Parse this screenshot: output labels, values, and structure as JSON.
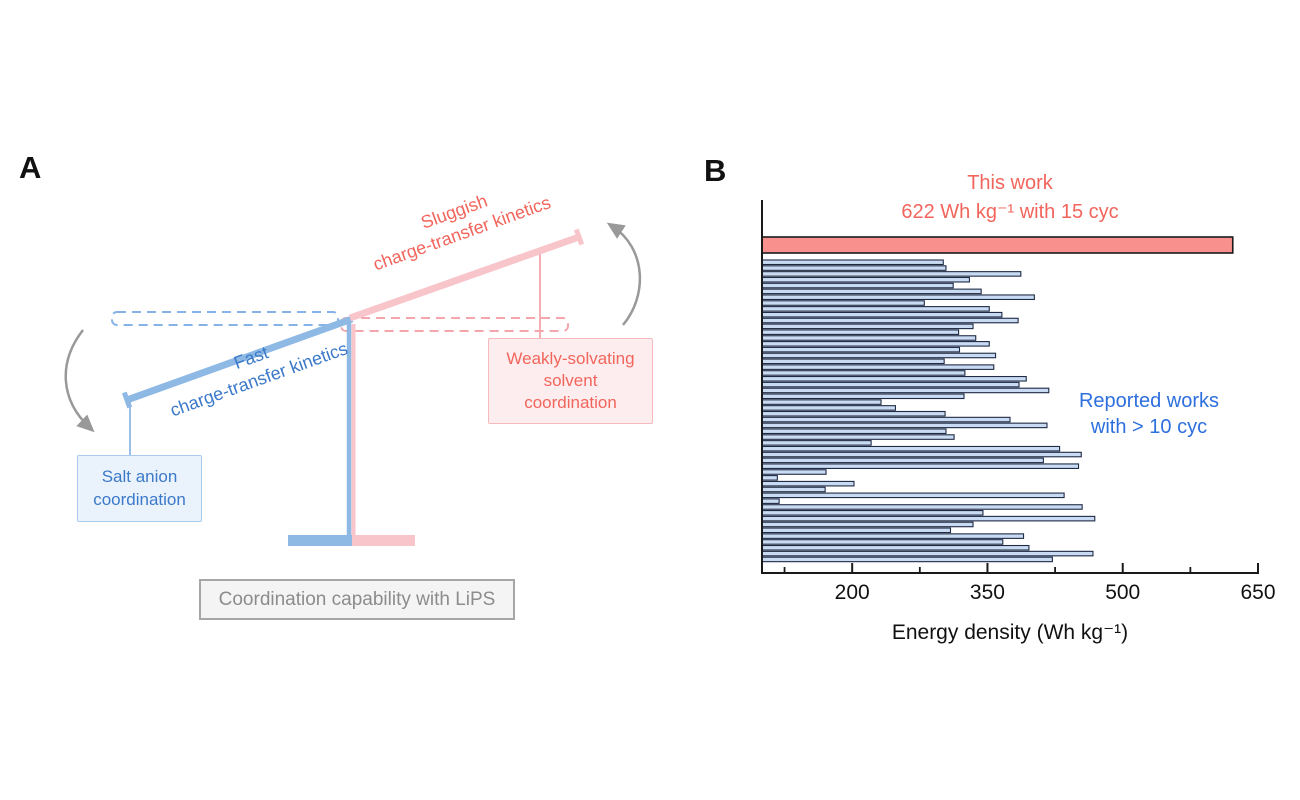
{
  "figure": {
    "panel_a": {
      "label": "A",
      "beam_labels": {
        "fast": [
          "Fast",
          "charge-transfer kinetics"
        ],
        "sluggish": [
          "Sluggish",
          "charge-transfer kinetics"
        ]
      },
      "left_box_lines": [
        "Salt anion",
        "coordination"
      ],
      "right_box_lines": [
        "Weakly-solvating",
        "solvent",
        "coordination"
      ],
      "caption": "Coordination capability with LiPS",
      "colors": {
        "blue": "#8FB9E5",
        "blue_text": "#3B79C9",
        "blue_box_fill": "#EAF3FC",
        "blue_box_border": "#A9CAEC",
        "pink": "#F8C5CB",
        "red_text": "#F2655C",
        "pink_box_fill": "#FDEDEE",
        "pink_box_border": "#F6B9BE",
        "gray_arrow": "#999999"
      }
    },
    "panel_b": {
      "label": "B",
      "title_lines": [
        "This work",
        "622 Wh kg⁻¹ with 15 cyc"
      ],
      "annotation_lines": [
        "Reported works",
        "with > 10 cyc"
      ],
      "xlabel": "Energy density (Wh kg⁻¹)"
    }
  },
  "chart_data": {
    "type": "bar",
    "orientation": "horizontal",
    "title": "This work — 622 Wh kg⁻¹ with 15 cyc",
    "xlabel": "Energy density (Wh kg⁻¹)",
    "xlim": [
      100,
      650
    ],
    "xticks": [
      200,
      350,
      500,
      650
    ],
    "minor_xticks": [
      125,
      275,
      425,
      575
    ],
    "grid": false,
    "legend_position": "none",
    "series": [
      {
        "name": "This work",
        "values": [
          622
        ],
        "color": "#F8918E",
        "edge_color": "#1A1A1A"
      },
      {
        "name": "Reported works with > 10 cyc",
        "values": [
          301,
          304,
          387,
          330,
          312,
          343,
          402,
          280,
          352,
          366,
          384,
          334,
          318,
          337,
          352,
          319,
          359,
          302,
          357,
          325,
          393,
          385,
          418,
          324,
          232,
          248,
          303,
          375,
          416,
          304,
          313,
          221,
          430,
          454,
          412,
          451,
          171,
          117,
          202,
          170,
          435,
          119,
          455,
          345,
          469,
          334,
          309,
          390,
          367,
          396,
          467,
          422
        ],
        "color": "#C9DBF3",
        "edge_color": "#1F2A44"
      }
    ]
  }
}
